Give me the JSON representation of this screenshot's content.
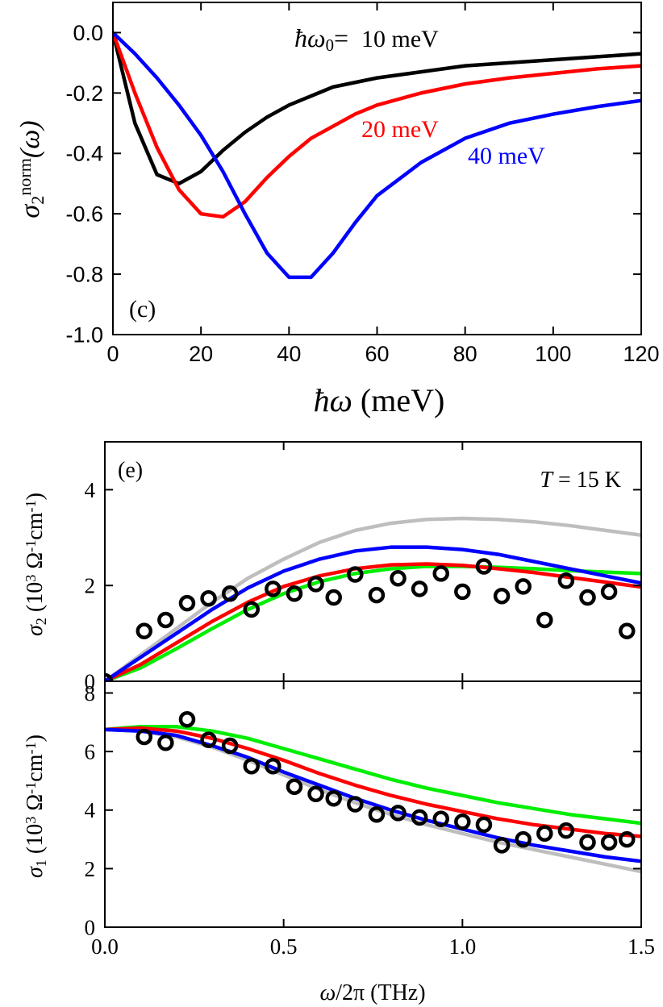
{
  "chart_data": [
    {
      "type": "line",
      "panel_label": "(c)",
      "xlabel": [
        {
          "text": "ħω",
          "style": "italic"
        },
        {
          "text": " (meV)"
        }
      ],
      "ylabel": [
        {
          "text": "σ",
          "style": "italic"
        },
        {
          "text": "2",
          "shift": "sub"
        },
        {
          "text": "norm",
          "shift": "sup"
        },
        {
          "text": "(ω)",
          "style": "italic"
        }
      ],
      "annotation": [
        {
          "text": "ħω",
          "style": "italic"
        },
        {
          "text": "0",
          "shift": "sub"
        },
        {
          "text": "="
        }
      ],
      "xlim": [
        0,
        120
      ],
      "xticks": [
        0,
        20,
        40,
        60,
        80,
        100,
        120
      ],
      "ylim": [
        -1.0,
        0.1
      ],
      "yticks": [
        {
          "value": 0,
          "label": "0.0"
        },
        -0.2,
        -0.4,
        -0.6,
        -0.8,
        {
          "value": -1,
          "label": "-1.0"
        }
      ],
      "series": [
        {
          "name": "10 meV",
          "color": "#000000",
          "x": [
            0,
            5,
            10,
            15,
            20,
            25,
            30,
            35,
            40,
            45,
            50,
            55,
            60,
            70,
            80,
            90,
            100,
            110,
            120
          ],
          "values": [
            0,
            -0.3,
            -0.47,
            -0.5,
            -0.46,
            -0.39,
            -0.33,
            -0.28,
            -0.24,
            -0.21,
            -0.18,
            -0.165,
            -0.15,
            -0.13,
            -0.11,
            -0.1,
            -0.09,
            -0.08,
            -0.07
          ]
        },
        {
          "name": "20 meV",
          "color": "#ff0000",
          "x": [
            0,
            5,
            10,
            15,
            20,
            25,
            30,
            35,
            40,
            45,
            50,
            55,
            60,
            70,
            80,
            90,
            100,
            110,
            120
          ],
          "values": [
            0,
            -0.2,
            -0.38,
            -0.52,
            -0.6,
            -0.61,
            -0.56,
            -0.48,
            -0.41,
            -0.35,
            -0.31,
            -0.27,
            -0.24,
            -0.2,
            -0.17,
            -0.15,
            -0.135,
            -0.12,
            -0.11
          ]
        },
        {
          "name": "40 meV",
          "color": "#0000ff",
          "x": [
            0,
            5,
            10,
            15,
            20,
            25,
            30,
            35,
            40,
            45,
            50,
            55,
            60,
            70,
            80,
            90,
            100,
            110,
            120
          ],
          "values": [
            0,
            -0.07,
            -0.15,
            -0.24,
            -0.34,
            -0.46,
            -0.6,
            -0.73,
            -0.81,
            -0.81,
            -0.73,
            -0.63,
            -0.54,
            -0.43,
            -0.35,
            -0.3,
            -0.27,
            -0.245,
            -0.225
          ]
        }
      ]
    },
    {
      "type": "line",
      "panel_label": "(e)",
      "annotation": [
        {
          "text": "T",
          "style": "italic"
        },
        {
          "text": " = 15 K"
        }
      ],
      "ylabel": [
        {
          "text": "σ",
          "style": "italic"
        },
        {
          "text": "2",
          "shift": "sub"
        },
        {
          "text": " (10"
        },
        {
          "text": "3",
          "shift": "sup"
        },
        {
          "text": " Ω"
        },
        {
          "text": "-1",
          "shift": "sup"
        },
        {
          "text": "cm"
        },
        {
          "text": "-1",
          "shift": "sup"
        },
        {
          "text": ")"
        }
      ],
      "xlim": [
        0,
        1.5
      ],
      "xticks": [
        0,
        0.5,
        1,
        1.5
      ],
      "xtick_labels": false,
      "ylim": [
        0,
        5
      ],
      "yticks": [
        0,
        2,
        4
      ],
      "series": [
        {
          "color": "#bebebe",
          "x": [
            0,
            0.1,
            0.2,
            0.3,
            0.4,
            0.5,
            0.6,
            0.7,
            0.8,
            0.9,
            1.0,
            1.1,
            1.2,
            1.3,
            1.4,
            1.5
          ],
          "values": [
            0,
            0.55,
            1.1,
            1.65,
            2.15,
            2.55,
            2.9,
            3.15,
            3.3,
            3.38,
            3.4,
            3.38,
            3.33,
            3.25,
            3.15,
            3.05
          ]
        },
        {
          "color": "#00ee00",
          "x": [
            0,
            0.1,
            0.2,
            0.3,
            0.4,
            0.5,
            0.6,
            0.7,
            0.8,
            0.9,
            1.0,
            1.1,
            1.2,
            1.3,
            1.4,
            1.5
          ],
          "values": [
            0,
            0.28,
            0.68,
            1.1,
            1.5,
            1.83,
            2.08,
            2.25,
            2.35,
            2.4,
            2.4,
            2.38,
            2.35,
            2.31,
            2.28,
            2.25
          ]
        },
        {
          "color": "#ff0000",
          "x": [
            0,
            0.1,
            0.2,
            0.3,
            0.4,
            0.5,
            0.6,
            0.7,
            0.8,
            0.9,
            1.0,
            1.1,
            1.2,
            1.3,
            1.4,
            1.5
          ],
          "values": [
            0,
            0.35,
            0.8,
            1.25,
            1.65,
            1.98,
            2.2,
            2.35,
            2.43,
            2.45,
            2.42,
            2.35,
            2.27,
            2.17,
            2.07,
            1.97
          ]
        },
        {
          "color": "#0000ff",
          "x": [
            0,
            0.1,
            0.2,
            0.3,
            0.4,
            0.5,
            0.6,
            0.7,
            0.8,
            0.9,
            1.0,
            1.1,
            1.2,
            1.3,
            1.4,
            1.5
          ],
          "values": [
            0,
            0.5,
            1.0,
            1.5,
            1.95,
            2.3,
            2.55,
            2.72,
            2.8,
            2.8,
            2.75,
            2.65,
            2.5,
            2.35,
            2.2,
            2.05
          ]
        },
        {
          "color": "#000000",
          "mode": "markers",
          "x": [
            0,
            0.11,
            0.17,
            0.23,
            0.29,
            0.35,
            0.41,
            0.47,
            0.53,
            0.59,
            0.64,
            0.7,
            0.76,
            0.82,
            0.88,
            0.94,
            1.0,
            1.06,
            1.11,
            1.17,
            1.23,
            1.29,
            1.35,
            1.41,
            1.46
          ],
          "values": [
            0,
            1.05,
            1.28,
            1.63,
            1.73,
            1.83,
            1.5,
            1.93,
            1.83,
            2.03,
            1.75,
            2.23,
            1.8,
            2.15,
            1.93,
            2.25,
            1.87,
            2.4,
            1.78,
            1.98,
            1.28,
            2.1,
            1.75,
            1.87,
            1.05
          ]
        }
      ]
    },
    {
      "type": "line",
      "xlabel": [
        {
          "text": "ω",
          "style": "italic"
        },
        {
          "text": "/2π (THz)"
        }
      ],
      "ylabel": [
        {
          "text": "σ",
          "style": "italic"
        },
        {
          "text": "1",
          "shift": "sub"
        },
        {
          "text": " (10"
        },
        {
          "text": "3",
          "shift": "sup"
        },
        {
          "text": " Ω"
        },
        {
          "text": "-1",
          "shift": "sup"
        },
        {
          "text": "cm"
        },
        {
          "text": "-1",
          "shift": "sup"
        },
        {
          "text": ")"
        }
      ],
      "xlim": [
        0,
        1.5
      ],
      "xticks": [
        {
          "value": 0,
          "label": "0.0"
        },
        0.5,
        {
          "value": 1,
          "label": "1.0"
        },
        1.5
      ],
      "ylim": [
        0,
        8.4
      ],
      "yticks": [
        0,
        2,
        4,
        6,
        8
      ],
      "series": [
        {
          "color": "#bebebe",
          "x": [
            0,
            0.1,
            0.2,
            0.3,
            0.4,
            0.5,
            0.6,
            0.7,
            0.8,
            0.9,
            1.0,
            1.1,
            1.2,
            1.3,
            1.4,
            1.5
          ],
          "values": [
            6.75,
            6.7,
            6.5,
            6.15,
            5.7,
            5.2,
            4.7,
            4.25,
            3.85,
            3.5,
            3.2,
            2.9,
            2.65,
            2.4,
            2.15,
            1.9
          ]
        },
        {
          "color": "#00ee00",
          "x": [
            0,
            0.1,
            0.2,
            0.3,
            0.4,
            0.5,
            0.6,
            0.7,
            0.8,
            0.9,
            1.0,
            1.1,
            1.2,
            1.3,
            1.4,
            1.5
          ],
          "values": [
            6.75,
            6.85,
            6.85,
            6.7,
            6.45,
            6.1,
            5.75,
            5.4,
            5.05,
            4.75,
            4.5,
            4.25,
            4.05,
            3.85,
            3.7,
            3.55
          ]
        },
        {
          "color": "#ff0000",
          "x": [
            0,
            0.1,
            0.2,
            0.3,
            0.4,
            0.5,
            0.6,
            0.7,
            0.8,
            0.9,
            1.0,
            1.1,
            1.2,
            1.3,
            1.4,
            1.5
          ],
          "values": [
            6.75,
            6.8,
            6.7,
            6.45,
            6.1,
            5.7,
            5.25,
            4.85,
            4.5,
            4.2,
            3.95,
            3.7,
            3.5,
            3.35,
            3.2,
            3.1
          ]
        },
        {
          "color": "#0000ff",
          "x": [
            0,
            0.1,
            0.2,
            0.3,
            0.4,
            0.5,
            0.6,
            0.7,
            0.8,
            0.9,
            1.0,
            1.1,
            1.2,
            1.3,
            1.4,
            1.5
          ],
          "values": [
            6.75,
            6.7,
            6.55,
            6.2,
            5.8,
            5.3,
            4.85,
            4.4,
            4.0,
            3.65,
            3.35,
            3.05,
            2.8,
            2.6,
            2.4,
            2.25
          ]
        },
        {
          "color": "#000000",
          "mode": "markers",
          "x": [
            0.11,
            0.17,
            0.23,
            0.29,
            0.35,
            0.41,
            0.47,
            0.53,
            0.59,
            0.64,
            0.7,
            0.76,
            0.82,
            0.88,
            0.94,
            1.0,
            1.06,
            1.11,
            1.17,
            1.23,
            1.29,
            1.35,
            1.41,
            1.46
          ],
          "values": [
            6.5,
            6.3,
            7.1,
            6.4,
            6.2,
            5.5,
            5.5,
            4.8,
            4.55,
            4.4,
            4.2,
            3.85,
            3.9,
            3.75,
            3.7,
            3.6,
            3.5,
            2.8,
            3.0,
            3.2,
            3.3,
            2.9,
            2.9,
            3.0
          ]
        }
      ]
    }
  ]
}
